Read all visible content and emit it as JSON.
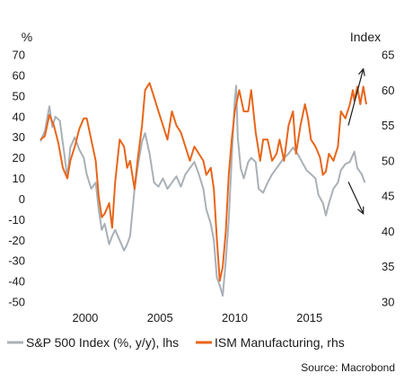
{
  "chart_data": {
    "type": "line",
    "title": "",
    "left_unit": "%",
    "right_unit": "Index",
    "x_ticks": [
      "2000",
      "2005",
      "2010",
      "2015"
    ],
    "x_range": [
      1997.0,
      2018.8
    ],
    "y_left": {
      "range": [
        -50,
        70
      ],
      "ticks": [
        "70",
        "60",
        "50",
        "40",
        "30",
        "20",
        "10",
        "0",
        "-10",
        "-20",
        "-30",
        "-40",
        "-50"
      ]
    },
    "y_right": {
      "range": [
        30,
        65
      ],
      "ticks": [
        "65",
        "60",
        "55",
        "50",
        "45",
        "40",
        "35",
        "30"
      ]
    },
    "grid": false,
    "legend_position": "bottom",
    "source": "Source: Macrobond",
    "series": [
      {
        "name": "S&P 500 Index (%, y/y), lhs",
        "axis": "left",
        "color": "#a9b0b6",
        "points": [
          [
            1997.0,
            28
          ],
          [
            1997.3,
            33
          ],
          [
            1997.6,
            45
          ],
          [
            1997.8,
            35
          ],
          [
            1998.0,
            40
          ],
          [
            1998.3,
            38
          ],
          [
            1998.6,
            22
          ],
          [
            1998.8,
            10
          ],
          [
            1999.0,
            25
          ],
          [
            1999.3,
            30
          ],
          [
            1999.6,
            24
          ],
          [
            1999.9,
            20
          ],
          [
            2000.1,
            12
          ],
          [
            2000.4,
            5
          ],
          [
            2000.7,
            8
          ],
          [
            2000.9,
            -5
          ],
          [
            2001.1,
            -15
          ],
          [
            2001.3,
            -12
          ],
          [
            2001.6,
            -22
          ],
          [
            2001.8,
            -18
          ],
          [
            2002.0,
            -15
          ],
          [
            2002.3,
            -20
          ],
          [
            2002.6,
            -25
          ],
          [
            2002.8,
            -22
          ],
          [
            2003.0,
            -18
          ],
          [
            2003.3,
            5
          ],
          [
            2003.5,
            15
          ],
          [
            2003.8,
            28
          ],
          [
            2004.0,
            32
          ],
          [
            2004.3,
            22
          ],
          [
            2004.6,
            8
          ],
          [
            2004.9,
            6
          ],
          [
            2005.2,
            10
          ],
          [
            2005.5,
            5
          ],
          [
            2005.8,
            8
          ],
          [
            2006.1,
            11
          ],
          [
            2006.4,
            6
          ],
          [
            2006.7,
            12
          ],
          [
            2007.0,
            15
          ],
          [
            2007.3,
            18
          ],
          [
            2007.6,
            12
          ],
          [
            2007.9,
            5
          ],
          [
            2008.1,
            -5
          ],
          [
            2008.4,
            -12
          ],
          [
            2008.6,
            -20
          ],
          [
            2008.8,
            -38
          ],
          [
            2009.0,
            -42
          ],
          [
            2009.2,
            -47
          ],
          [
            2009.4,
            -30
          ],
          [
            2009.6,
            -10
          ],
          [
            2009.8,
            20
          ],
          [
            2010.0,
            48
          ],
          [
            2010.1,
            55
          ],
          [
            2010.2,
            30
          ],
          [
            2010.4,
            15
          ],
          [
            2010.6,
            10
          ],
          [
            2010.9,
            18
          ],
          [
            2011.1,
            20
          ],
          [
            2011.4,
            18
          ],
          [
            2011.6,
            5
          ],
          [
            2011.9,
            3
          ],
          [
            2012.2,
            8
          ],
          [
            2012.5,
            12
          ],
          [
            2012.8,
            15
          ],
          [
            2013.0,
            17
          ],
          [
            2013.3,
            20
          ],
          [
            2013.6,
            22
          ],
          [
            2013.9,
            25
          ],
          [
            2014.2,
            22
          ],
          [
            2014.5,
            18
          ],
          [
            2014.8,
            14
          ],
          [
            2015.1,
            12
          ],
          [
            2015.4,
            10
          ],
          [
            2015.6,
            2
          ],
          [
            2015.9,
            -2
          ],
          [
            2016.1,
            -8
          ],
          [
            2016.3,
            -2
          ],
          [
            2016.6,
            5
          ],
          [
            2016.9,
            8
          ],
          [
            2017.1,
            14
          ],
          [
            2017.4,
            17
          ],
          [
            2017.7,
            18
          ],
          [
            2018.0,
            23
          ],
          [
            2018.2,
            15
          ],
          [
            2018.5,
            12
          ],
          [
            2018.7,
            8
          ]
        ]
      },
      {
        "name": "ISM Manufacturing, rhs",
        "axis": "right",
        "color": "#e8651a",
        "points": [
          [
            1997.0,
            53
          ],
          [
            1997.3,
            53.5
          ],
          [
            1997.6,
            56.5
          ],
          [
            1997.9,
            55
          ],
          [
            1998.2,
            52.5
          ],
          [
            1998.5,
            49
          ],
          [
            1998.8,
            47.5
          ],
          [
            1999.0,
            50
          ],
          [
            1999.3,
            52
          ],
          [
            1999.6,
            54.5
          ],
          [
            1999.9,
            56
          ],
          [
            2000.1,
            56
          ],
          [
            2000.4,
            53
          ],
          [
            2000.7,
            50
          ],
          [
            2000.9,
            45
          ],
          [
            2001.1,
            42
          ],
          [
            2001.3,
            42.5
          ],
          [
            2001.6,
            44
          ],
          [
            2001.8,
            40.5
          ],
          [
            2002.0,
            47
          ],
          [
            2002.3,
            53
          ],
          [
            2002.6,
            52
          ],
          [
            2002.8,
            49
          ],
          [
            2003.0,
            50
          ],
          [
            2003.3,
            46
          ],
          [
            2003.5,
            50
          ],
          [
            2003.8,
            55
          ],
          [
            2004.0,
            60
          ],
          [
            2004.3,
            61
          ],
          [
            2004.6,
            59
          ],
          [
            2004.9,
            57
          ],
          [
            2005.2,
            55
          ],
          [
            2005.5,
            53
          ],
          [
            2005.8,
            57
          ],
          [
            2006.1,
            55
          ],
          [
            2006.4,
            54
          ],
          [
            2006.7,
            52
          ],
          [
            2007.0,
            50
          ],
          [
            2007.3,
            52
          ],
          [
            2007.6,
            51
          ],
          [
            2007.9,
            50
          ],
          [
            2008.1,
            48
          ],
          [
            2008.4,
            49
          ],
          [
            2008.6,
            46
          ],
          [
            2008.8,
            39
          ],
          [
            2009.0,
            33
          ],
          [
            2009.2,
            35
          ],
          [
            2009.4,
            40
          ],
          [
            2009.6,
            48
          ],
          [
            2009.8,
            53
          ],
          [
            2010.0,
            57
          ],
          [
            2010.3,
            60
          ],
          [
            2010.6,
            57
          ],
          [
            2010.9,
            57
          ],
          [
            2011.1,
            60
          ],
          [
            2011.4,
            54
          ],
          [
            2011.7,
            50
          ],
          [
            2011.9,
            53
          ],
          [
            2012.2,
            53
          ],
          [
            2012.5,
            50
          ],
          [
            2012.8,
            51
          ],
          [
            2013.0,
            53
          ],
          [
            2013.3,
            50
          ],
          [
            2013.6,
            55
          ],
          [
            2013.9,
            57
          ],
          [
            2014.1,
            51
          ],
          [
            2014.4,
            55
          ],
          [
            2014.7,
            58
          ],
          [
            2014.9,
            56
          ],
          [
            2015.1,
            53
          ],
          [
            2015.4,
            52
          ],
          [
            2015.7,
            50.5
          ],
          [
            2015.9,
            48
          ],
          [
            2016.1,
            48.5
          ],
          [
            2016.3,
            51
          ],
          [
            2016.6,
            50
          ],
          [
            2016.9,
            52
          ],
          [
            2017.1,
            57
          ],
          [
            2017.4,
            56
          ],
          [
            2017.7,
            58
          ],
          [
            2017.9,
            60
          ],
          [
            2018.0,
            58.5
          ],
          [
            2018.2,
            60.5
          ],
          [
            2018.4,
            58
          ],
          [
            2018.6,
            60.5
          ],
          [
            2018.8,
            58
          ]
        ]
      }
    ],
    "annotations": [
      {
        "name": "up-arrow",
        "from": [
          2017.6,
          55
        ],
        "to": [
          2018.6,
          63
        ]
      },
      {
        "name": "down-arrow",
        "from": [
          2017.6,
          47
        ],
        "to": [
          2018.6,
          42.5
        ]
      }
    ]
  }
}
